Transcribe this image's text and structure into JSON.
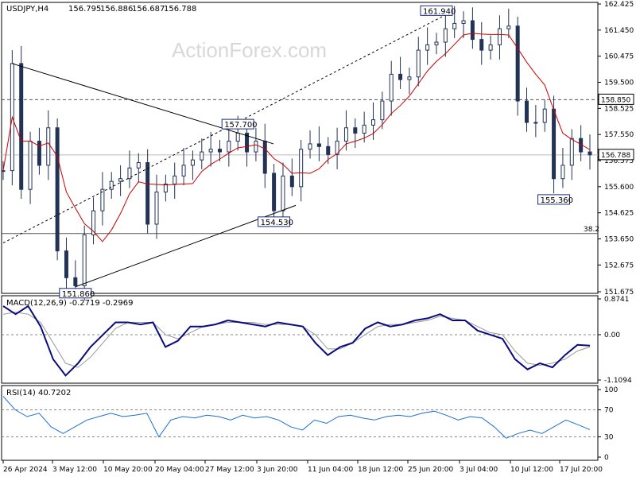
{
  "watermark": "ActionForex.com",
  "chart_data": {
    "type": "candlestick",
    "symbol_header": "USDJPY,H4",
    "ohlc": {
      "open": "156.795",
      "high": "156.886",
      "low": "156.687",
      "close": "156.788"
    },
    "price_axis": {
      "ticks": [
        "162.425",
        "161.450",
        "160.475",
        "159.500",
        "158.525",
        "157.550",
        "156.575",
        "155.600",
        "154.625",
        "153.650",
        "152.675",
        "151.675"
      ],
      "range": [
        151.675,
        162.425
      ]
    },
    "current_price": "156.788",
    "horizontal_levels": [
      {
        "label": "158.850",
        "value": 158.85,
        "style": "dashed"
      },
      {
        "label": "38.2",
        "value": 153.85,
        "style": "solid"
      }
    ],
    "annotations": [
      {
        "label": "161.940",
        "value": 161.94,
        "date": "28 Jun"
      },
      {
        "label": "157.700",
        "value": 157.7,
        "date": "29 May"
      },
      {
        "label": "154.530",
        "value": 154.53,
        "date": "4 Jun"
      },
      {
        "label": "151.860",
        "value": 151.86,
        "date": "3 May"
      },
      {
        "label": "155.360",
        "value": 155.36,
        "date": "17 Jul"
      }
    ],
    "moving_average": "red line",
    "x_ticks": [
      "26 Apr 2024",
      "3 May 12:00",
      "10 May 20:00",
      "20 May 04:00",
      "27 May 12:00",
      "3 Jun 20:00",
      "11 Jun 04:00",
      "18 Jun 12:00",
      "25 Jun 20:00",
      "3 Jul 04:00",
      "10 Jul 12:00",
      "17 Jul 20:00"
    ],
    "candles_close_path": [
      [
        "26 Apr",
        156.2
      ],
      [
        "29 Apr",
        160.2
      ],
      [
        "29 Apr",
        155.5
      ],
      [
        "30 Apr",
        157.3
      ],
      [
        "1 May",
        156.4
      ],
      [
        "1 May",
        157.8
      ],
      [
        "2 May",
        153.2
      ],
      [
        "3 May",
        152.2
      ],
      [
        "3 May",
        151.9
      ],
      [
        "6 May",
        153.8
      ],
      [
        "7 May",
        154.7
      ],
      [
        "8 May",
        155.5
      ],
      [
        "9 May",
        155.8
      ],
      [
        "10 May",
        155.9
      ],
      [
        "13 May",
        156.3
      ],
      [
        "14 May",
        156.5
      ],
      [
        "15 May",
        154.2
      ],
      [
        "16 May",
        155.4
      ],
      [
        "17 May",
        155.7
      ],
      [
        "20 May",
        156.0
      ],
      [
        "21 May",
        156.4
      ],
      [
        "22 May",
        156.6
      ],
      [
        "23 May",
        156.9
      ],
      [
        "24 May",
        157.0
      ],
      [
        "27 May",
        156.9
      ],
      [
        "28 May",
        157.3
      ],
      [
        "29 May",
        157.6
      ],
      [
        "30 May",
        156.9
      ],
      [
        "31 May",
        157.3
      ],
      [
        "3 Jun",
        156.1
      ],
      [
        "4 Jun",
        154.7
      ],
      [
        "5 Jun",
        156.0
      ],
      [
        "6 Jun",
        155.6
      ],
      [
        "7 Jun",
        157.0
      ],
      [
        "10 Jun",
        157.2
      ],
      [
        "11 Jun",
        157.1
      ],
      [
        "12 Jun",
        156.8
      ],
      [
        "13 Jun",
        157.3
      ],
      [
        "14 Jun",
        157.8
      ],
      [
        "17 Jun",
        157.6
      ],
      [
        "18 Jun",
        157.9
      ],
      [
        "19 Jun",
        158.1
      ],
      [
        "20 Jun",
        158.8
      ],
      [
        "21 Jun",
        159.8
      ],
      [
        "24 Jun",
        159.6
      ],
      [
        "25 Jun",
        159.7
      ],
      [
        "26 Jun",
        160.7
      ],
      [
        "27 Jun",
        160.9
      ],
      [
        "28 Jun",
        161.0
      ],
      [
        "1 Jul",
        161.5
      ],
      [
        "2 Jul",
        161.7
      ],
      [
        "3 Jul",
        161.8
      ],
      [
        "4 Jul",
        161.1
      ],
      [
        "5 Jul",
        160.7
      ],
      [
        "8 Jul",
        160.9
      ],
      [
        "9 Jul",
        161.5
      ],
      [
        "10 Jul",
        161.6
      ],
      [
        "11 Jul",
        158.8
      ],
      [
        "12 Jul",
        158.0
      ],
      [
        "15 Jul",
        158.0
      ],
      [
        "16 Jul",
        158.5
      ],
      [
        "17 Jul",
        155.9
      ],
      [
        "18 Jul",
        156.4
      ],
      [
        "19 Jul",
        157.4
      ],
      [
        "22 Jul",
        156.9
      ],
      [
        "22 Jul",
        156.79
      ]
    ],
    "macd": {
      "header": "MACD(12,26,9) -0.2719 -0.2969",
      "axis_ticks": [
        "0.8741",
        "0.00",
        "-1.1094"
      ],
      "range": [
        -1.1094,
        0.8741
      ],
      "main_path": [
        0.7,
        0.5,
        0.7,
        0.2,
        -0.6,
        -1.0,
        -0.7,
        -0.3,
        0.0,
        0.3,
        0.3,
        0.25,
        0.3,
        -0.3,
        -0.15,
        0.2,
        0.2,
        0.25,
        0.35,
        0.3,
        0.25,
        0.2,
        0.3,
        0.25,
        0.2,
        -0.2,
        -0.5,
        -0.3,
        -0.2,
        0.15,
        0.3,
        0.2,
        0.25,
        0.35,
        0.4,
        0.5,
        0.35,
        0.35,
        0.1,
        0.0,
        -0.1,
        -0.6,
        -0.85,
        -0.7,
        -0.8,
        -0.5,
        -0.25,
        -0.27
      ],
      "signal_path": [
        0.5,
        0.55,
        0.5,
        0.3,
        -0.2,
        -0.7,
        -0.8,
        -0.55,
        -0.2,
        0.15,
        0.3,
        0.3,
        0.3,
        0.0,
        -0.1,
        0.05,
        0.2,
        0.25,
        0.3,
        0.3,
        0.3,
        0.25,
        0.25,
        0.25,
        0.2,
        0.0,
        -0.35,
        -0.35,
        -0.2,
        0.0,
        0.2,
        0.25,
        0.25,
        0.3,
        0.35,
        0.45,
        0.4,
        0.35,
        0.2,
        0.05,
        0.0,
        -0.4,
        -0.7,
        -0.75,
        -0.7,
        -0.6,
        -0.4,
        -0.3
      ]
    },
    "rsi": {
      "header": "RSI(14) 40.7202",
      "axis_ticks": [
        "100",
        "70",
        "30",
        "0"
      ],
      "range": [
        0,
        100
      ],
      "levels": [
        70,
        30
      ],
      "path": [
        90,
        70,
        60,
        65,
        45,
        35,
        45,
        55,
        60,
        65,
        60,
        62,
        65,
        30,
        55,
        60,
        58,
        62,
        60,
        55,
        62,
        58,
        60,
        55,
        45,
        40,
        55,
        50,
        60,
        62,
        58,
        55,
        60,
        62,
        60,
        65,
        68,
        62,
        55,
        60,
        58,
        45,
        28,
        35,
        40,
        35,
        45,
        55,
        48,
        40.7
      ]
    }
  }
}
